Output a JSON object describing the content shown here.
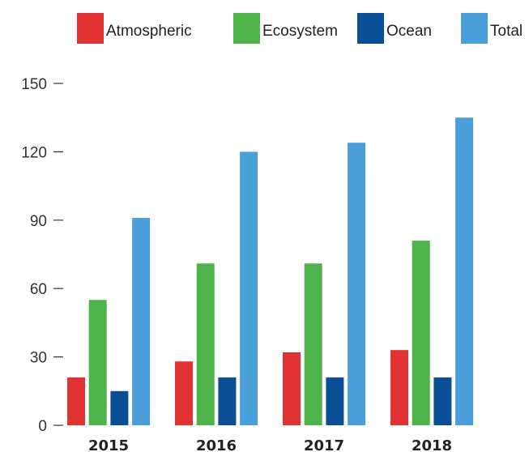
{
  "chart_data": {
    "type": "bar",
    "categories": [
      "2015",
      "2016",
      "2017",
      "2018"
    ],
    "series": [
      {
        "name": "Atmospheric",
        "color": "#e03232",
        "values": [
          21,
          28,
          32,
          33
        ]
      },
      {
        "name": "Ecosystem",
        "color": "#4eb34a",
        "values": [
          55,
          71,
          71,
          81
        ]
      },
      {
        "name": "Ocean",
        "color": "#0a4f96",
        "values": [
          15,
          21,
          21,
          21
        ]
      },
      {
        "name": "Total",
        "color": "#4a9fdb",
        "values": [
          91,
          120,
          124,
          135
        ]
      }
    ],
    "yticks": [
      "0",
      "30",
      "60",
      "90",
      "120",
      "150"
    ],
    "ylim": [
      0,
      150
    ],
    "legend": "top-right",
    "grid": false
  }
}
